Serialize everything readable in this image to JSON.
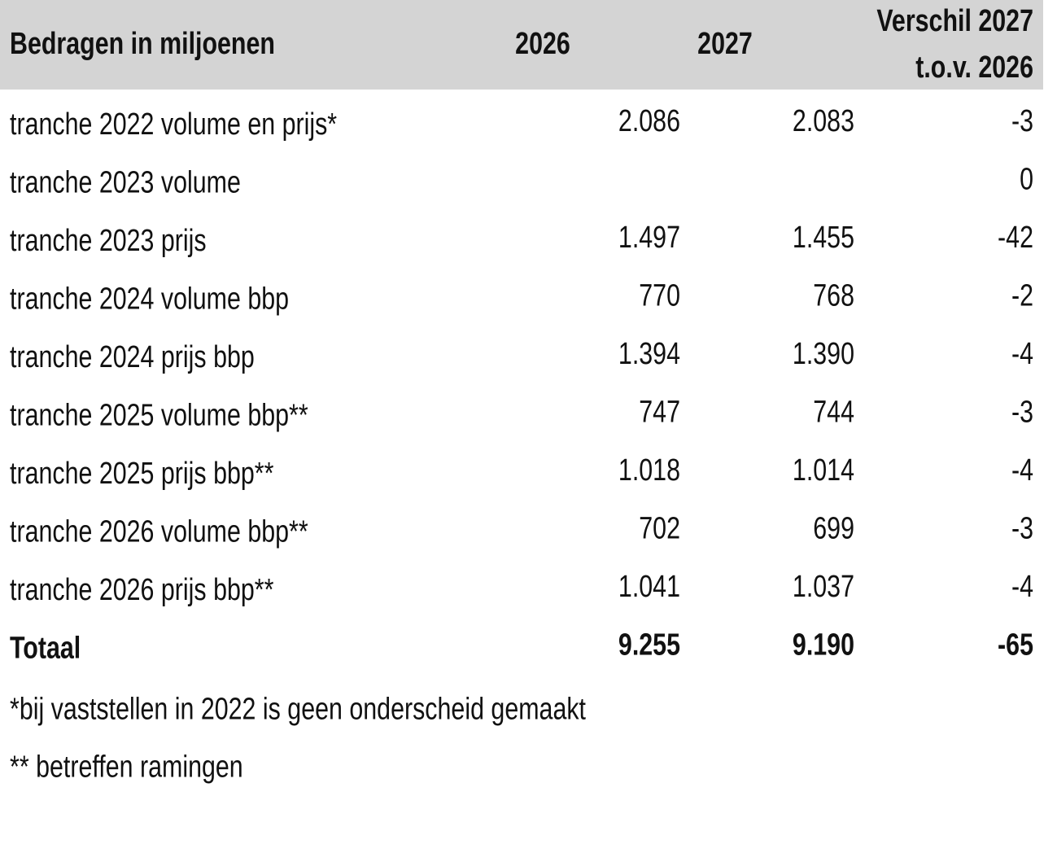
{
  "table": {
    "header": {
      "label": "Bedragen in miljoenen",
      "col1": "2026",
      "col2": "2027",
      "diff": [
        "Verschil 2027",
        "t.o.v. 2026"
      ]
    },
    "rows": [
      [
        "tranche 2022 volume en prijs*",
        "2.086",
        "2.083",
        "-3"
      ],
      [
        "tranche 2023 volume",
        null,
        null,
        "0"
      ],
      [
        "tranche 2023 prijs",
        "1.497",
        "1.455",
        "-42"
      ],
      [
        "tranche 2024 volume bbp",
        "770",
        "768",
        "-2"
      ],
      [
        "tranche 2024 prijs bbp",
        "1.394",
        "1.390",
        "-4"
      ],
      [
        "tranche 2025 volume bbp**",
        "747",
        "744",
        "-3"
      ],
      [
        "tranche 2025 prijs bbp**",
        "1.018",
        "1.014",
        "-4"
      ],
      [
        "tranche 2026 volume bbp**",
        "702",
        "699",
        "-3"
      ],
      [
        "tranche 2026 prijs bbp**",
        "1.041",
        "1.037",
        "-4"
      ]
    ],
    "total": [
      "Totaal",
      "9.255",
      "9.190",
      "-65"
    ],
    "footnotes": [
      "*bij vaststellen in 2022 is geen onderscheid gemaakt",
      "** betreffen ramingen"
    ]
  }
}
